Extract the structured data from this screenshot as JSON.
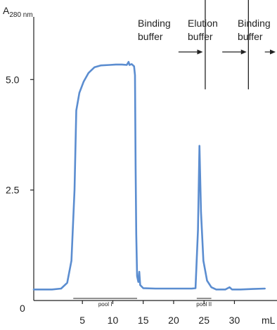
{
  "chart_data": {
    "type": "line",
    "title": "",
    "ylabel_main": "A",
    "ylabel_sub": "280 nm",
    "xlabel": "mL",
    "xlim": [
      -3,
      37
    ],
    "ylim": [
      0,
      6.8
    ],
    "x_ticks": [
      5,
      10,
      15,
      20,
      25,
      30
    ],
    "y_ticks": [
      0,
      2.5,
      5.0
    ],
    "y_tick_labels": [
      "0",
      "2.5",
      "5.0"
    ],
    "grid": false,
    "series": [
      {
        "color": "#5b8dd0",
        "points": [
          [
            -3,
            0.25
          ],
          [
            0,
            0.25
          ],
          [
            1.5,
            0.27
          ],
          [
            2.5,
            0.4
          ],
          [
            3.2,
            0.9
          ],
          [
            3.7,
            2.5
          ],
          [
            4.0,
            4.3
          ],
          [
            4.5,
            4.7
          ],
          [
            5.2,
            4.95
          ],
          [
            6.0,
            5.15
          ],
          [
            7.0,
            5.28
          ],
          [
            8.0,
            5.32
          ],
          [
            9.5,
            5.33
          ],
          [
            10.5,
            5.34
          ],
          [
            11.5,
            5.34
          ],
          [
            12.3,
            5.33
          ],
          [
            12.6,
            5.4
          ],
          [
            12.75,
            5.33
          ],
          [
            13.1,
            5.35
          ],
          [
            13.5,
            5.3
          ],
          [
            13.65,
            5.1
          ],
          [
            13.75,
            3.0
          ],
          [
            13.85,
            1.5
          ],
          [
            14.0,
            0.55
          ],
          [
            14.2,
            0.42
          ],
          [
            14.35,
            0.65
          ],
          [
            14.5,
            0.35
          ],
          [
            15,
            0.28
          ],
          [
            17,
            0.27
          ],
          [
            20,
            0.27
          ],
          [
            23.0,
            0.27
          ],
          [
            23.6,
            0.28
          ],
          [
            24.0,
            1.6
          ],
          [
            24.25,
            3.5
          ],
          [
            24.5,
            2.0
          ],
          [
            24.9,
            0.9
          ],
          [
            25.5,
            0.45
          ],
          [
            26.2,
            0.3
          ],
          [
            27,
            0.25
          ],
          [
            28.5,
            0.25
          ],
          [
            29.2,
            0.3
          ],
          [
            29.6,
            0.25
          ],
          [
            31,
            0.25
          ],
          [
            33,
            0.26
          ],
          [
            35,
            0.27
          ]
        ]
      }
    ],
    "pools": [
      {
        "label": "pool I",
        "x_start": 3.5,
        "x_end": 14.0
      },
      {
        "label": "pool II",
        "x_start": 23.8,
        "x_end": 26.2
      }
    ],
    "buffer_markers": [
      {
        "x": 25.2,
        "y_top": 6.9,
        "y_bottom": 5.0
      },
      {
        "x": 32.3,
        "y_top": 6.9,
        "y_bottom": 5.0
      }
    ],
    "buffer_labels": [
      {
        "line1": "Binding",
        "line2": "buffer"
      },
      {
        "line1": "Elution",
        "line2": "buffer"
      },
      {
        "line1": "Binding",
        "line2": "buffer"
      }
    ],
    "arrows": [
      {
        "x_start": 20.8,
        "x_end": 24.8
      },
      {
        "x_start": 28.0,
        "x_end": 32.0
      },
      {
        "x_start": 35.0,
        "x_end": 39.0
      }
    ]
  }
}
